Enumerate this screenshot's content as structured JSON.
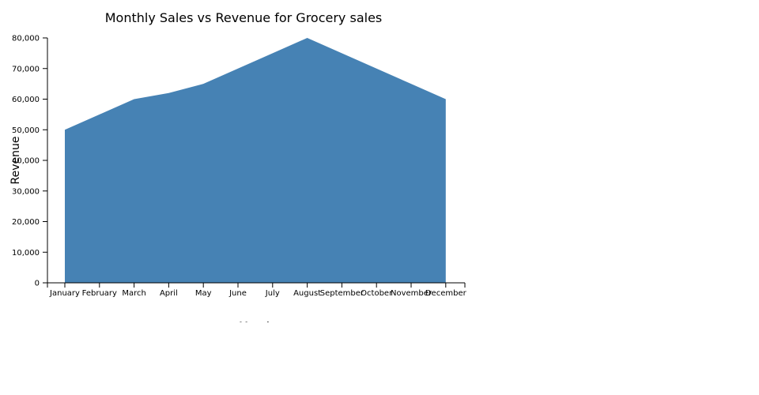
{
  "chart_data": {
    "type": "area",
    "title": "Monthly Sales vs Revenue for Grocery sales",
    "xlabel": "Month",
    "ylabel": "Revenue",
    "categories": [
      "January",
      "February",
      "March",
      "April",
      "May",
      "June",
      "July",
      "August",
      "September",
      "October",
      "November",
      "December"
    ],
    "values": [
      50000,
      55000,
      60000,
      62000,
      65000,
      70000,
      75000,
      80000,
      75000,
      70000,
      65000,
      60000
    ],
    "ylim": [
      0,
      80000
    ],
    "yticks": [
      "0",
      "10,000",
      "20,000",
      "30,000",
      "40,000",
      "50,000",
      "60,000",
      "70,000",
      "80,000"
    ],
    "grid": false,
    "legend": "none",
    "fill_color": "#4682b4"
  }
}
